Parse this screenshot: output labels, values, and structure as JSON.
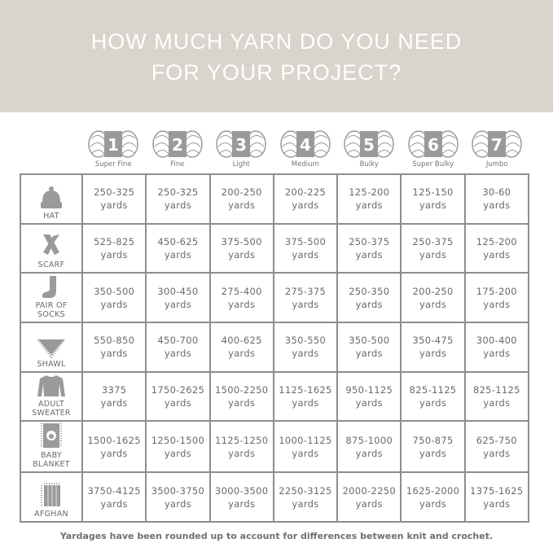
{
  "title_lines": [
    "HOW MUCH YARN DO YOU NEED",
    "FOR YOUR PROJECT?"
  ],
  "weights": [
    {
      "number": "1",
      "label": "Super Fine"
    },
    {
      "number": "2",
      "label": "Fine"
    },
    {
      "number": "3",
      "label": "Light"
    },
    {
      "number": "4",
      "label": "Medium"
    },
    {
      "number": "5",
      "label": "Bulky"
    },
    {
      "number": "6",
      "label": "Super Bulky"
    },
    {
      "number": "7",
      "label": "Jumbo"
    }
  ],
  "unit": "yards",
  "projects": [
    {
      "name_lines": [
        "HAT"
      ],
      "icon": "hat-icon",
      "values": [
        "250-325",
        "250-325",
        "200-250",
        "200-225",
        "125-200",
        "125-150",
        "30-60"
      ]
    },
    {
      "name_lines": [
        "SCARF"
      ],
      "icon": "scarf-icon",
      "values": [
        "525-825",
        "450-625",
        "375-500",
        "375-500",
        "250-375",
        "250-375",
        "125-200"
      ]
    },
    {
      "name_lines": [
        "PAIR OF",
        "SOCKS"
      ],
      "icon": "socks-icon",
      "values": [
        "350-500",
        "300-450",
        "275-400",
        "275-375",
        "250-350",
        "200-250",
        "175-200"
      ]
    },
    {
      "name_lines": [
        "SHAWL"
      ],
      "icon": "shawl-icon",
      "values": [
        "550-850",
        "450-700",
        "400-625",
        "350-550",
        "350-500",
        "350-475",
        "300-400"
      ]
    },
    {
      "name_lines": [
        "ADULT",
        "SWEATER"
      ],
      "icon": "sweater-icon",
      "values": [
        "3375",
        "1750-2625",
        "1500-2250",
        "1125-1625",
        "950-1125",
        "825-1125",
        "825-1125"
      ]
    },
    {
      "name_lines": [
        "BABY",
        "BLANKET"
      ],
      "icon": "baby-blanket-icon",
      "values": [
        "1500-1625",
        "1250-1500",
        "1125-1250",
        "1000-1125",
        "875-1000",
        "750-875",
        "625-750"
      ]
    },
    {
      "name_lines": [
        "AFGHAN"
      ],
      "icon": "afghan-icon",
      "values": [
        "3750-4125",
        "3500-3750",
        "3000-3500",
        "2250-3125",
        "2000-2250",
        "1625-2000",
        "1375-1625"
      ]
    }
  ],
  "footnote": "Yardages have been rounded up to account for differences between knit and crochet.",
  "colors": {
    "header_bg": "#d9d4cc",
    "grid": "#8e8e8e",
    "icon": "#9a9a9a"
  }
}
